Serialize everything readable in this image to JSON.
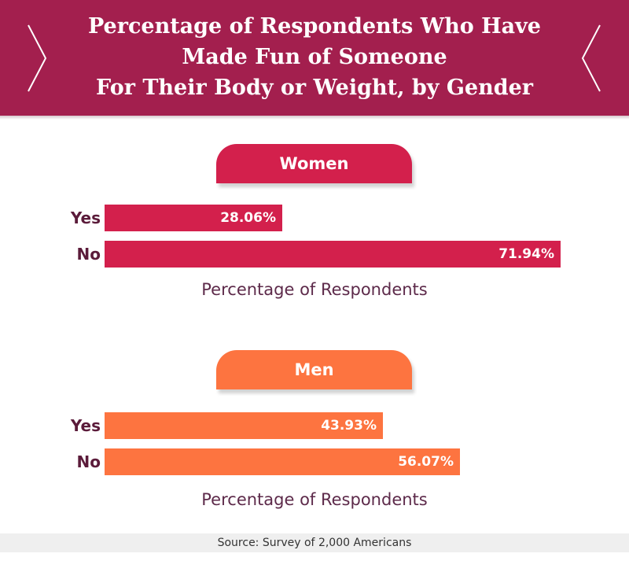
{
  "header": {
    "title_lines": [
      "Percentage of Respondents Who Have",
      "Made Fun of Someone",
      "For Their Body or Weight, by Gender"
    ]
  },
  "colors": {
    "header": "#a31f4e",
    "women": "#d3204c",
    "men": "#fd7440",
    "label_text": "#5b1b3a"
  },
  "chart_data": [
    {
      "type": "bar",
      "orientation": "horizontal",
      "title": "Women",
      "categories": [
        "Yes",
        "No"
      ],
      "values": [
        28.06,
        71.94
      ],
      "value_labels": [
        "28.06%",
        "71.94%"
      ],
      "xlabel": "Percentage of Respondents",
      "xlim": [
        0,
        100
      ],
      "color": "#d3204c",
      "grid": false
    },
    {
      "type": "bar",
      "orientation": "horizontal",
      "title": "Men",
      "categories": [
        "Yes",
        "No"
      ],
      "values": [
        43.93,
        56.07
      ],
      "value_labels": [
        "43.93%",
        "56.07%"
      ],
      "xlabel": "Percentage of Respondents",
      "xlim": [
        0,
        100
      ],
      "color": "#fd7440",
      "grid": false
    }
  ],
  "footer": {
    "source": "Source: Survey of 2,000 Americans"
  }
}
